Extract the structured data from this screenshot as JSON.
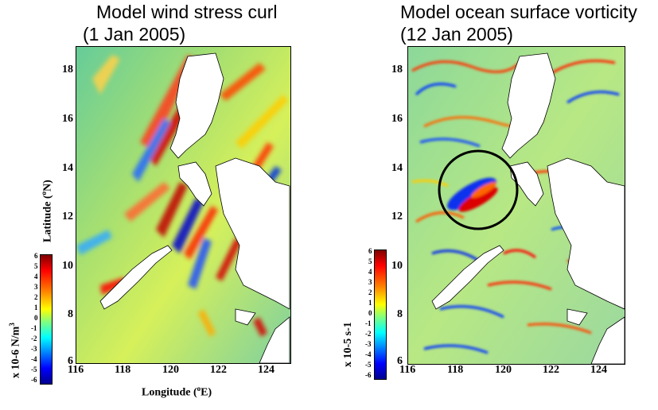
{
  "panels": [
    {
      "title_line1": "Model wind stress curl",
      "title_line2": " (1 Jan 2005)",
      "ylabel_text": "Latitude (",
      "ylabel_sup": "o",
      "ylabel_end": "N)",
      "xlabel_text": "Longitude (",
      "xlabel_sup": "o",
      "xlabel_end": "E)",
      "colorbar_label": "x 10-6 N/m",
      "colorbar_label_sup": "3",
      "yticks": [
        "18",
        "16",
        "14",
        "12",
        "10",
        "8",
        "6"
      ],
      "xticks": [
        "116",
        "118",
        "120",
        "122",
        "124"
      ],
      "cbar_ticks": [
        "6",
        "5",
        "4",
        "3",
        "2",
        "1",
        "0",
        "-1",
        "-2",
        "-3",
        "-4",
        "-5",
        "-6"
      ]
    },
    {
      "title_line1": "Model ocean surface vorticity",
      "title_line2": "(12 Jan 2005)",
      "colorbar_label": "x 10-5 s-1",
      "yticks": [
        "18",
        "16",
        "14",
        "12",
        "10",
        "8",
        "6"
      ],
      "xticks": [
        "116",
        "118",
        "120",
        "122",
        "124"
      ],
      "cbar_ticks": [
        "6",
        "5",
        "4",
        "3",
        "2",
        "1",
        "0",
        "-1",
        "-2",
        "-3",
        "-4",
        "-5",
        "-6"
      ],
      "annotation": "circle-highlight-eddy"
    }
  ],
  "colors": {
    "colormap": [
      "#00008f",
      "#0000ff",
      "#0080ff",
      "#00ffff",
      "#80ff80",
      "#ffff00",
      "#ff8000",
      "#ff0000",
      "#800000"
    ],
    "land": "#ffffff",
    "background_field": "#8fd49a"
  }
}
